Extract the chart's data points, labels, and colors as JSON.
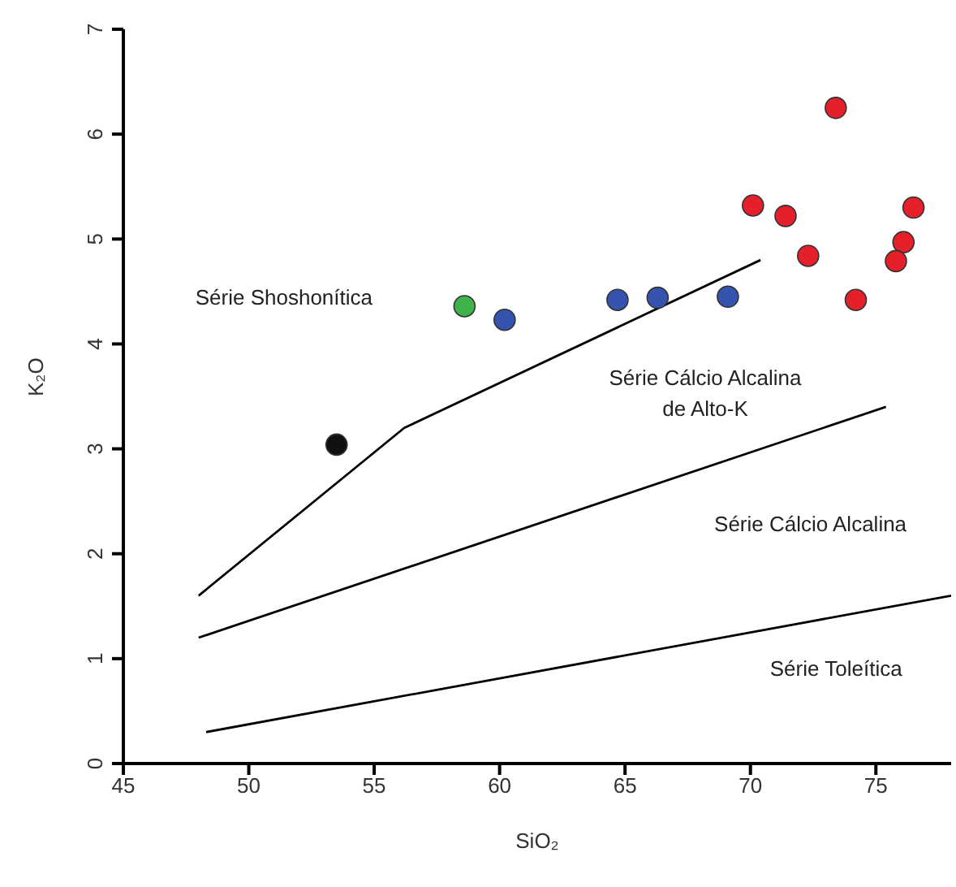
{
  "chart_data": {
    "type": "scatter",
    "xlabel": "SiO₂",
    "ylabel": "K₂O",
    "xlim": [
      45,
      78
    ],
    "ylim": [
      0,
      7
    ],
    "xticks": [
      45,
      50,
      55,
      60,
      65,
      70,
      75
    ],
    "yticks": [
      0,
      1,
      2,
      3,
      4,
      5,
      6,
      7
    ],
    "series": [
      {
        "type": "line",
        "marker": "none",
        "color": "#000000",
        "x": [
          48,
          56.2,
          70.4
        ],
        "values": [
          1.6,
          3.2,
          4.8
        ]
      },
      {
        "type": "line",
        "marker": "none",
        "color": "#000000",
        "x": [
          48,
          75.4
        ],
        "values": [
          1.2,
          3.4
        ]
      },
      {
        "type": "line",
        "marker": "none",
        "color": "#000000",
        "x": [
          48.3,
          78
        ],
        "values": [
          0.3,
          1.6
        ]
      },
      {
        "marker": "circle",
        "color": "#111111",
        "x": [
          53.5
        ],
        "values": [
          3.04
        ]
      },
      {
        "marker": "circle",
        "color": "#3fb34a",
        "x": [
          58.6
        ],
        "values": [
          4.36
        ]
      },
      {
        "marker": "circle",
        "color": "#3554b0",
        "x": [
          60.2,
          64.7,
          66.3,
          69.1
        ],
        "values": [
          4.23,
          4.42,
          4.44,
          4.45
        ]
      },
      {
        "marker": "circle",
        "color": "#e5202a",
        "x": [
          70.1,
          71.4,
          73.4,
          72.3,
          76.5,
          76.1,
          75.8,
          74.2
        ],
        "values": [
          5.32,
          5.22,
          6.25,
          4.84,
          5.3,
          4.97,
          4.79,
          4.42
        ]
      }
    ],
    "annotations": [
      "Série Shoshonítica",
      "Série Cálcio Alcalina\nde Alto-K",
      "Série Cálcio Alcalina",
      "Série Toleítica"
    ]
  }
}
